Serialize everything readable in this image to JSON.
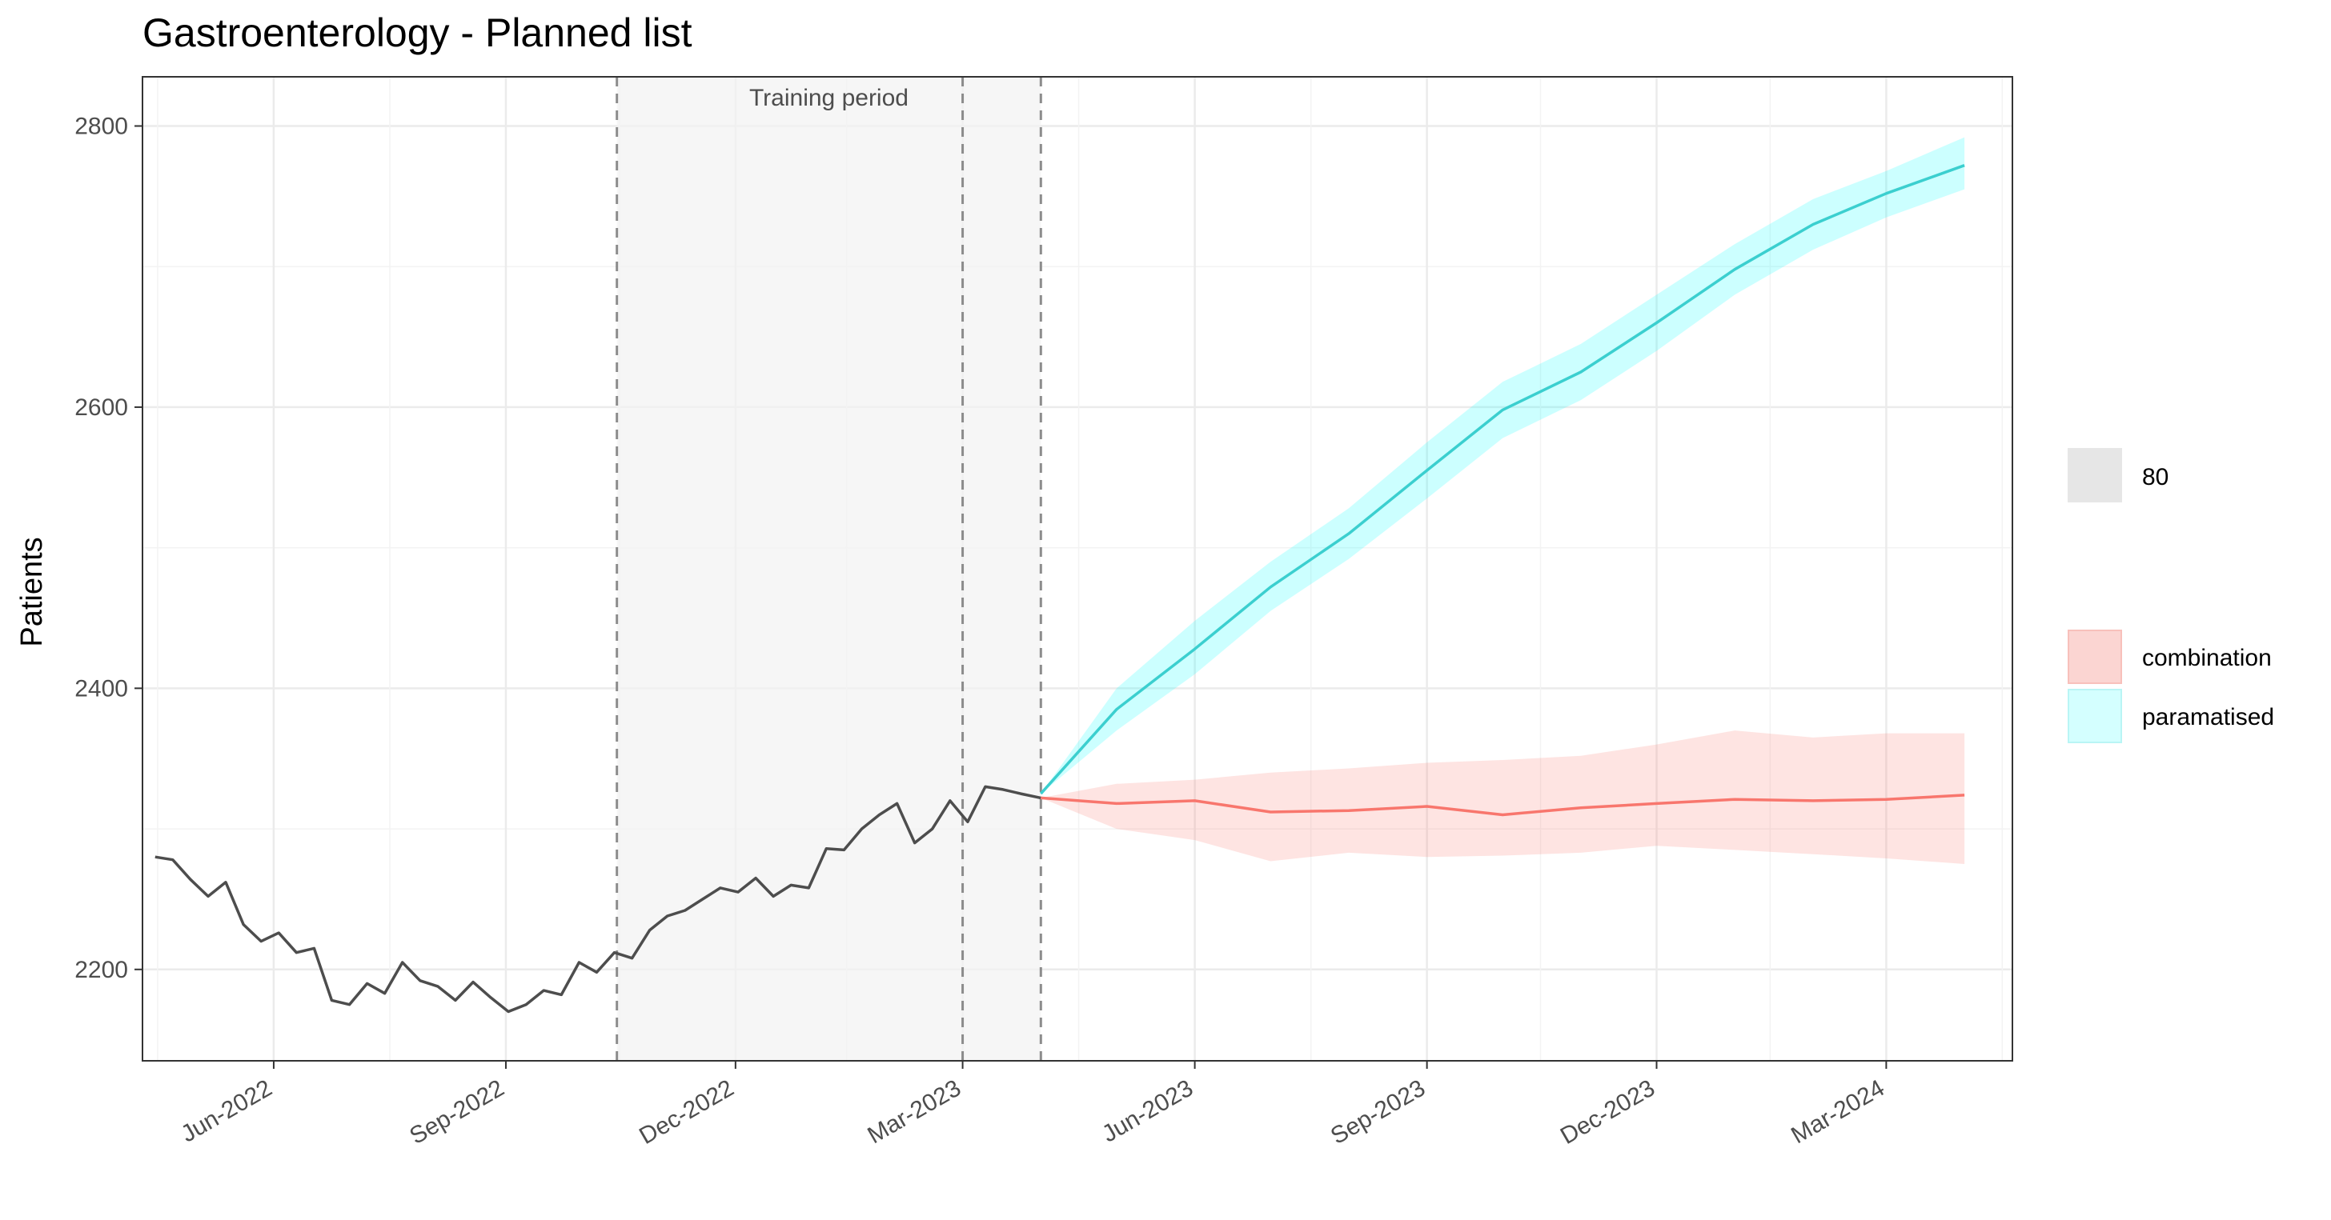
{
  "chart_data": {
    "type": "line",
    "title": "Gastroenterology - Planned list",
    "subtitle": "",
    "xlabel": "",
    "ylabel": "Patients",
    "x_axis": {
      "type": "date",
      "range": [
        "2022-04-10",
        "2024-04-20"
      ],
      "tick_labels": [
        "Jun-2022",
        "Sep-2022",
        "Dec-2022",
        "Mar-2023",
        "Jun-2023",
        "Sep-2023",
        "Dec-2023",
        "Mar-2024"
      ],
      "tick_dates": [
        "2022-06-01",
        "2022-09-01",
        "2022-12-01",
        "2023-03-01",
        "2023-06-01",
        "2023-09-01",
        "2023-12-01",
        "2024-03-01"
      ]
    },
    "y_axis": {
      "range": [
        2135,
        2835
      ],
      "ticks": [
        2200,
        2400,
        2600,
        2800
      ]
    },
    "grid": true,
    "training_period": {
      "label": "Training period",
      "start": "2022-10-15",
      "end": "2023-04-01",
      "marker": "2023-03-01"
    },
    "history": {
      "name": "",
      "color": "#4d4d4d",
      "x": [
        "2022-04-15",
        "2022-04-22",
        "2022-04-29",
        "2022-05-06",
        "2022-05-13",
        "2022-05-20",
        "2022-05-27",
        "2022-06-03",
        "2022-06-10",
        "2022-06-17",
        "2022-06-24",
        "2022-07-01",
        "2022-07-08",
        "2022-07-15",
        "2022-07-22",
        "2022-07-29",
        "2022-08-05",
        "2022-08-12",
        "2022-08-19",
        "2022-08-26",
        "2022-09-02",
        "2022-09-09",
        "2022-09-16",
        "2022-09-23",
        "2022-09-30",
        "2022-10-07",
        "2022-10-14",
        "2022-10-21",
        "2022-10-28",
        "2022-11-04",
        "2022-11-11",
        "2022-11-18",
        "2022-11-25",
        "2022-12-02",
        "2022-12-09",
        "2022-12-16",
        "2022-12-23",
        "2022-12-30",
        "2023-01-06",
        "2023-01-13",
        "2023-01-20",
        "2023-01-27",
        "2023-02-03",
        "2023-02-10",
        "2023-02-17",
        "2023-02-24",
        "2023-03-03",
        "2023-03-10",
        "2023-03-17",
        "2023-03-24",
        "2023-04-01"
      ],
      "y": [
        2280,
        2278,
        2264,
        2252,
        2262,
        2232,
        2220,
        2226,
        2212,
        2215,
        2178,
        2175,
        2190,
        2183,
        2205,
        2192,
        2188,
        2178,
        2191,
        2180,
        2170,
        2175,
        2185,
        2182,
        2205,
        2198,
        2212,
        2208,
        2228,
        2238,
        2242,
        2250,
        2258,
        2255,
        2265,
        2252,
        2260,
        2258,
        2286,
        2285,
        2300,
        2310,
        2318,
        2290,
        2300,
        2320,
        2305,
        2330,
        2328,
        2325,
        2322
      ]
    },
    "series": [
      {
        "name": "combination",
        "color": "#f8766d",
        "band_color": "#f8766d",
        "x": [
          "2023-04-01",
          "2023-05-01",
          "2023-06-01",
          "2023-07-01",
          "2023-08-01",
          "2023-09-01",
          "2023-10-01",
          "2023-11-01",
          "2023-12-01",
          "2024-01-01",
          "2024-02-01",
          "2024-03-01",
          "2024-04-01"
        ],
        "y": [
          2322,
          2318,
          2320,
          2312,
          2313,
          2316,
          2310,
          2315,
          2318,
          2321,
          2320,
          2321,
          2324
        ],
        "lower": [
          2322,
          2300,
          2292,
          2277,
          2283,
          2280,
          2281,
          2283,
          2288,
          2285,
          2282,
          2279,
          2275
        ],
        "upper": [
          2322,
          2332,
          2335,
          2340,
          2343,
          2347,
          2349,
          2352,
          2360,
          2370,
          2365,
          2368,
          2368
        ]
      },
      {
        "name": "paramatised",
        "color": "#3bcfcf",
        "band_color": "#00ffff",
        "x": [
          "2023-04-01",
          "2023-05-01",
          "2023-06-01",
          "2023-07-01",
          "2023-08-01",
          "2023-09-01",
          "2023-10-01",
          "2023-11-01",
          "2023-12-01",
          "2024-01-01",
          "2024-02-01",
          "2024-03-01",
          "2024-04-01"
        ],
        "y": [
          2325,
          2385,
          2428,
          2472,
          2510,
          2555,
          2598,
          2625,
          2660,
          2698,
          2730,
          2752,
          2772
        ],
        "lower": [
          2325,
          2370,
          2410,
          2455,
          2492,
          2535,
          2578,
          2605,
          2640,
          2680,
          2712,
          2735,
          2755
        ],
        "upper": [
          2325,
          2400,
          2448,
          2490,
          2528,
          2575,
          2618,
          2645,
          2680,
          2716,
          2748,
          2768,
          2792
        ]
      }
    ],
    "legend": {
      "position": "right",
      "level_label": "80",
      "level_color": "#e6e6e6",
      "entries": [
        {
          "label": "combination",
          "fill": "#fbd5d2",
          "stroke": "#f8c0bb"
        },
        {
          "label": "paramatised",
          "fill": "#d4ffff",
          "stroke": "#b9f5f5"
        }
      ]
    }
  }
}
